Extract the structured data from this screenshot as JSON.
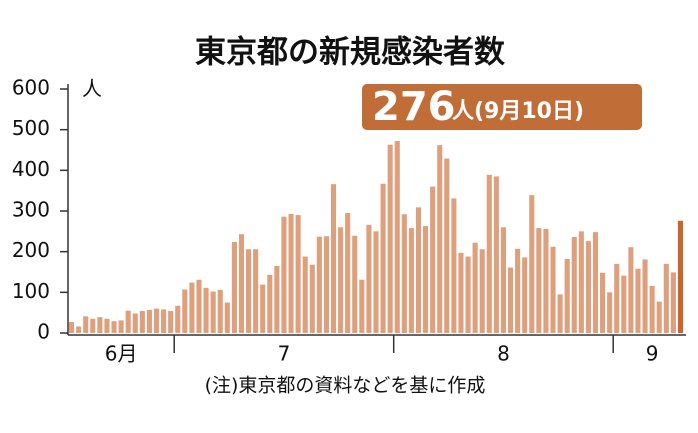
{
  "chart_data": {
    "type": "bar",
    "title": "東京都の新規感染者数",
    "y_unit": "人",
    "annotation_number": "276",
    "annotation_text": "人(9月10日)",
    "note": "(注)東京都の資料などを基に作成",
    "color": "#dea07c",
    "highlight_color": "#c8652e",
    "annotation_color": "#c06d38",
    "ylim": [
      0,
      600
    ],
    "yticks": [
      0,
      100,
      200,
      300,
      400,
      500,
      600
    ],
    "categories": [
      null,
      null,
      null,
      null,
      null,
      null,
      null,
      "6月",
      null,
      null,
      null,
      null,
      null,
      null,
      null,
      null,
      null,
      null,
      null,
      null,
      null,
      null,
      null,
      null,
      null,
      null,
      null,
      null,
      null,
      null,
      "7",
      null,
      null,
      null,
      null,
      null,
      null,
      null,
      null,
      null,
      null,
      null,
      null,
      null,
      null,
      null,
      null,
      null,
      null,
      null,
      null,
      null,
      null,
      null,
      null,
      null,
      null,
      null,
      null,
      null,
      null,
      "8",
      null,
      null,
      null,
      null,
      null,
      null,
      null,
      null,
      null,
      null,
      null,
      null,
      null,
      null,
      null,
      null,
      null,
      null,
      null,
      null,
      "9",
      null,
      null,
      null,
      null
    ],
    "values": [
      27,
      16,
      41,
      35,
      39,
      35,
      29,
      31,
      55,
      48,
      54,
      57,
      60,
      58,
      54,
      67,
      107,
      124,
      131,
      111,
      102,
      106,
      75,
      224,
      243,
      206,
      206,
      119,
      143,
      165,
      286,
      293,
      290,
      188,
      168,
      237,
      238,
      366,
      260,
      295,
      239,
      131,
      266,
      250,
      367,
      463,
      472,
      292,
      258,
      309,
      263,
      360,
      462,
      429,
      331,
      197,
      188,
      222,
      206,
      389,
      385,
      260,
      161,
      207,
      186,
      339,
      258,
      256,
      212,
      95,
      182,
      236,
      250,
      226,
      248,
      148,
      100,
      170,
      141,
      211,
      158,
      181,
      116,
      77,
      170,
      149,
      276
    ]
  }
}
